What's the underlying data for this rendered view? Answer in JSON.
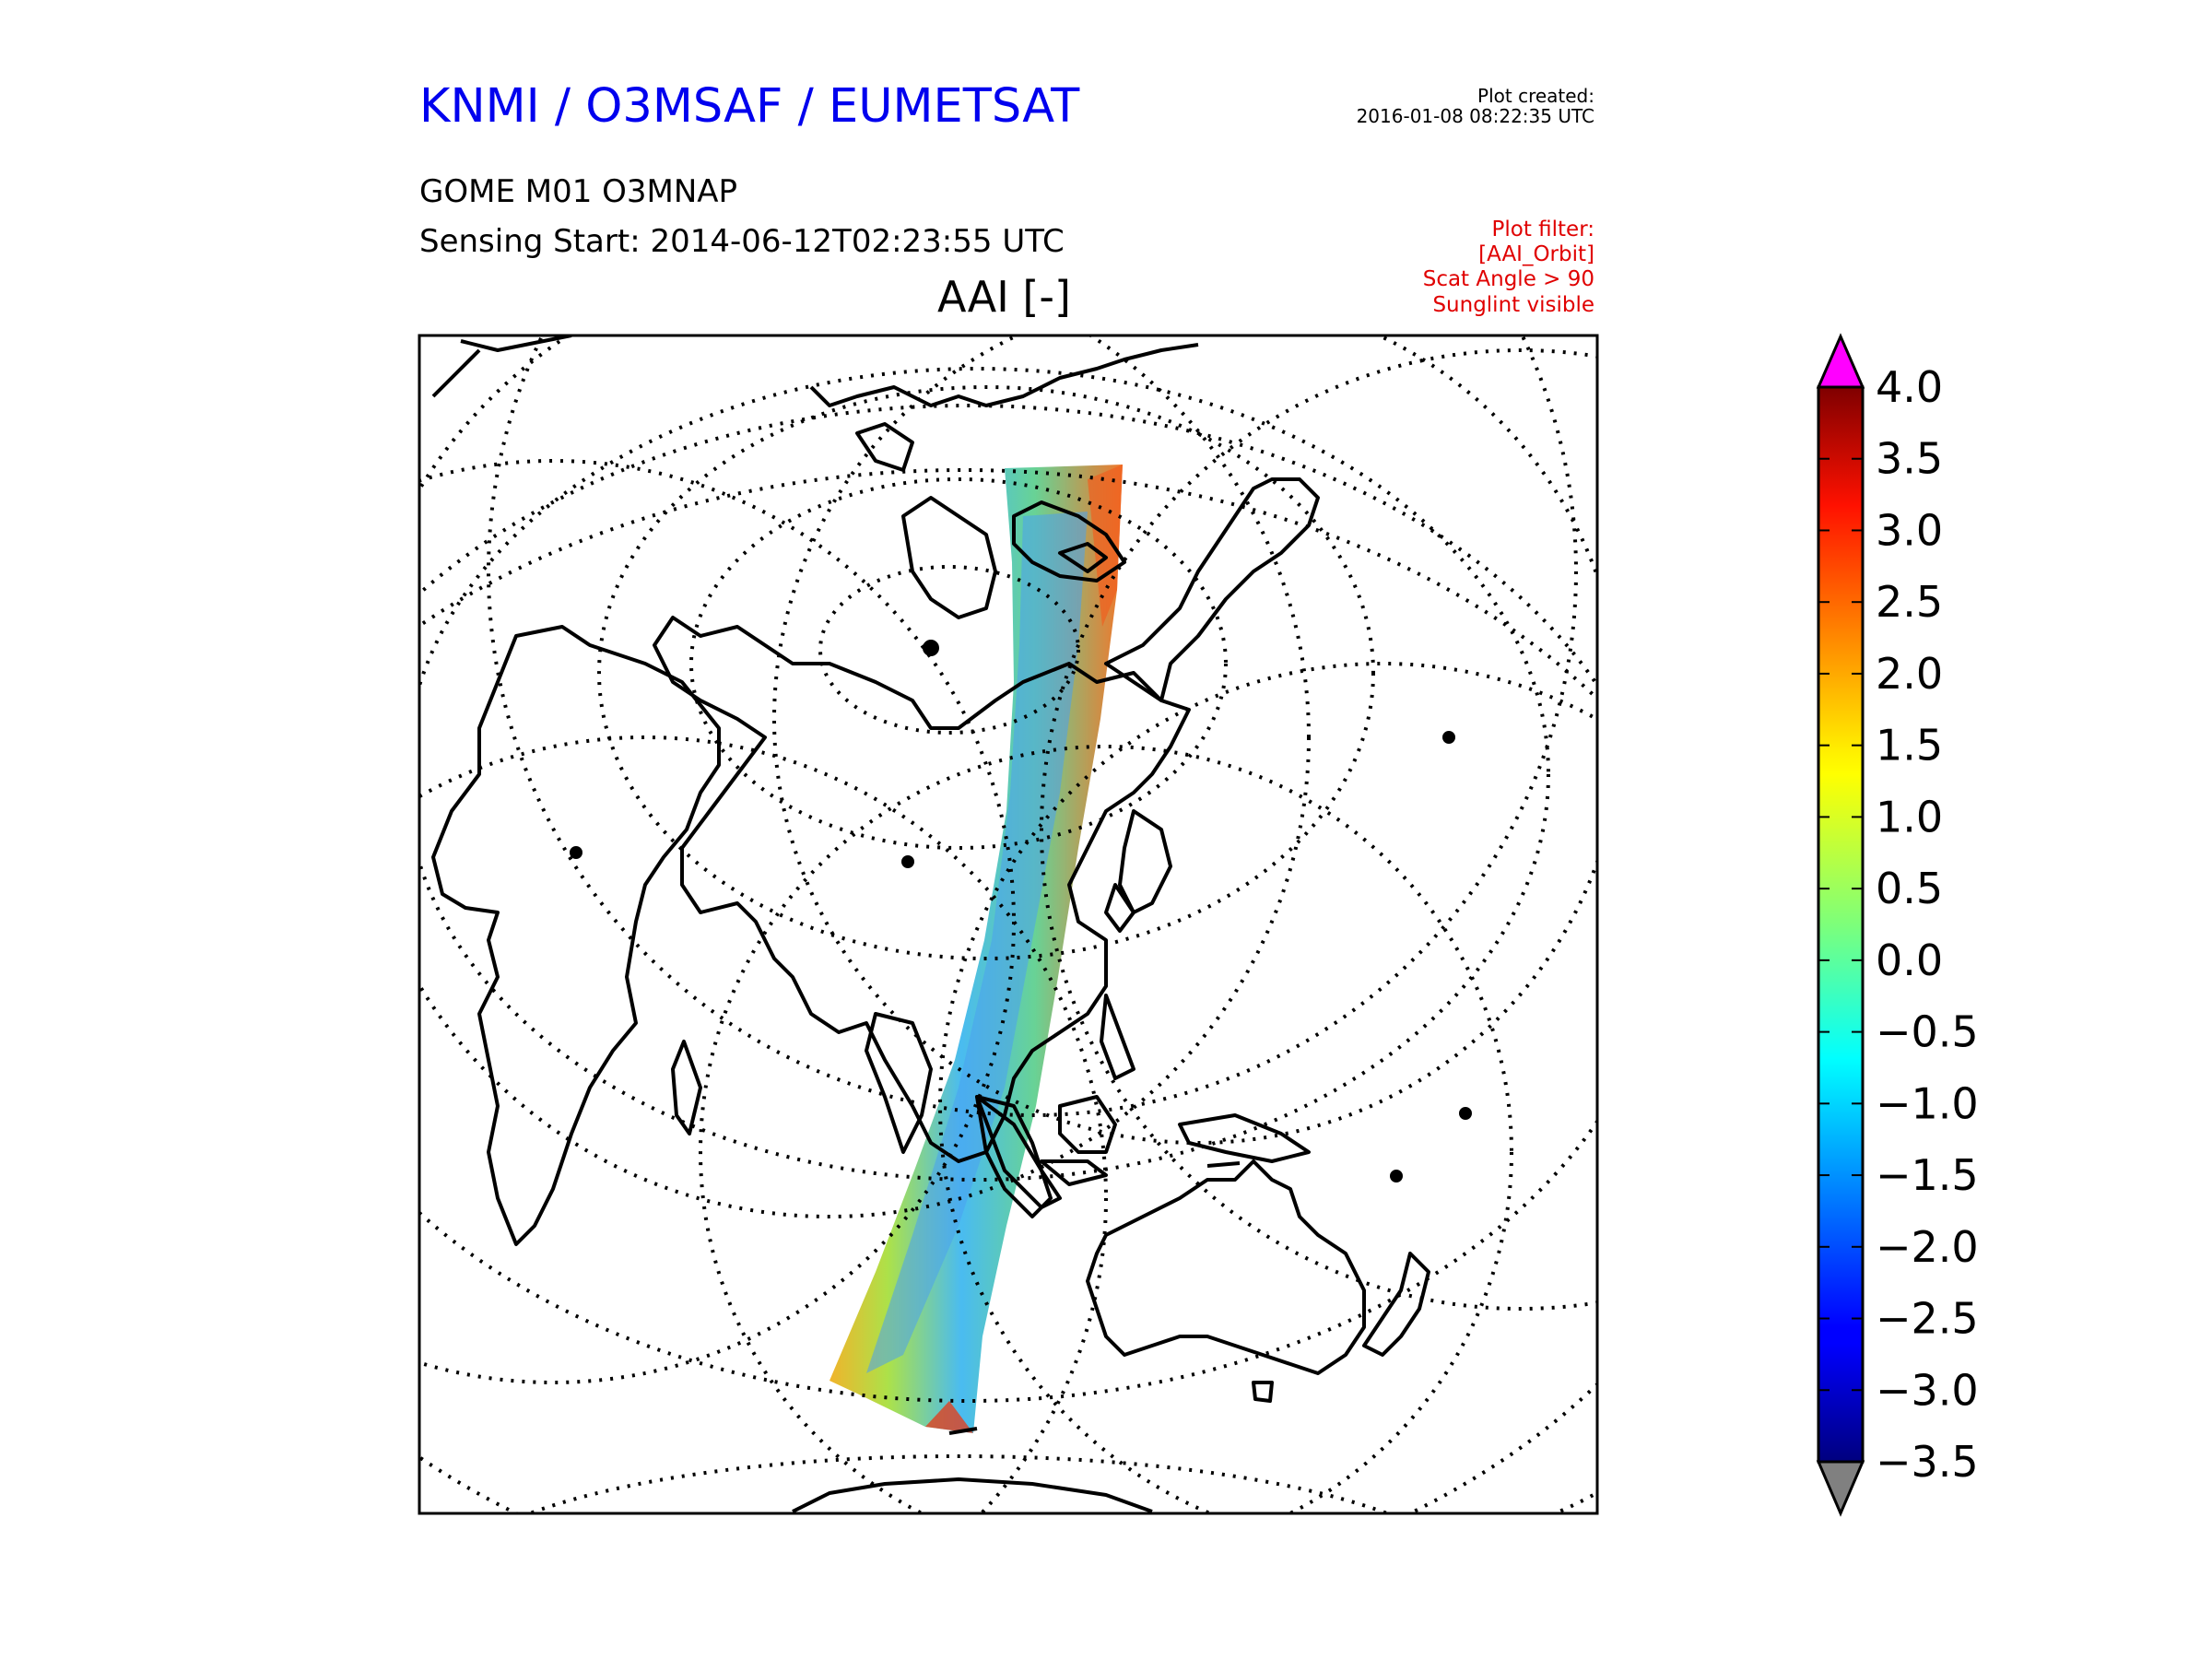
{
  "header": {
    "organization": "KNMI / O3MSAF / EUMETSAT",
    "created_label": "Plot created:",
    "created_time": "2016-01-08 08:22:35 UTC",
    "product": "GOME M01 O3MNAP",
    "sensing_start": "Sensing Start: 2014-06-12T02:23:55 UTC",
    "variable": "AAI [-]"
  },
  "filters": [
    "Plot filter:",
    "[AAI_Orbit]",
    "Scat Angle > 90",
    "Sunglint visible"
  ],
  "colorbar": {
    "ticks": [
      "4.0",
      "3.5",
      "3.0",
      "2.5",
      "2.0",
      "1.5",
      "1.0",
      "0.5",
      "0.0",
      "−0.5",
      "−1.0",
      "−1.5",
      "−2.0",
      "−2.5",
      "−3.0",
      "−3.5"
    ],
    "min": -3.5,
    "max": 4.0,
    "colormap": "jet",
    "over_color": "#ff00ff",
    "under_color": "#808080"
  },
  "map": {
    "projection": "orthographic polar-tilted",
    "graticule": "dotted",
    "coastlines": "black"
  },
  "swath": {
    "instrument": "GOME",
    "parameter": "AAI"
  }
}
